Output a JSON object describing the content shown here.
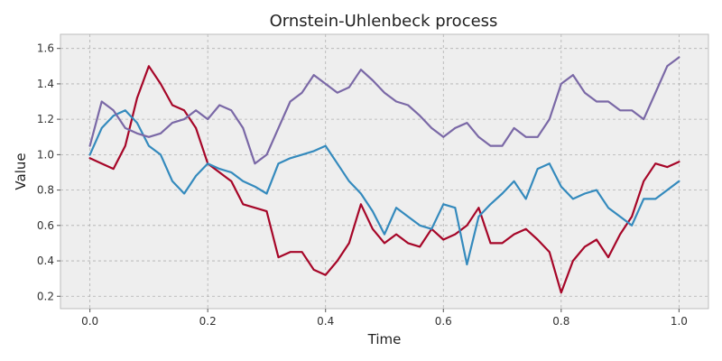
{
  "chart_data": {
    "type": "line",
    "title": "Ornstein-Uhlenbeck process",
    "xlabel": "Time",
    "ylabel": "Value",
    "xlim": [
      -0.05,
      1.05
    ],
    "ylim": [
      0.13,
      1.68
    ],
    "xticks": [
      "0.0",
      "0.2",
      "0.4",
      "0.6",
      "0.8",
      "1.0"
    ],
    "yticks": [
      "0.2",
      "0.4",
      "0.6",
      "0.8",
      "1.0",
      "1.2",
      "1.4",
      "1.6"
    ],
    "grid": true,
    "background": "#eeeeee",
    "series": [
      {
        "color": "#a60628",
        "x": [
          0.0,
          0.02,
          0.04,
          0.06,
          0.08,
          0.1,
          0.12,
          0.14,
          0.16,
          0.18,
          0.2,
          0.22,
          0.24,
          0.26,
          0.28,
          0.3,
          0.32,
          0.34,
          0.36,
          0.38,
          0.4,
          0.42,
          0.44,
          0.46,
          0.48,
          0.5,
          0.52,
          0.54,
          0.56,
          0.58,
          0.6,
          0.62,
          0.64,
          0.66,
          0.68,
          0.7,
          0.72,
          0.74,
          0.76,
          0.78,
          0.8,
          0.82,
          0.84,
          0.86,
          0.88,
          0.9,
          0.92,
          0.94,
          0.96,
          0.98,
          1.0
        ],
        "y": [
          0.98,
          0.95,
          0.92,
          1.05,
          1.32,
          1.5,
          1.4,
          1.28,
          1.25,
          1.15,
          0.95,
          0.9,
          0.85,
          0.72,
          0.7,
          0.68,
          0.42,
          0.45,
          0.45,
          0.35,
          0.32,
          0.4,
          0.5,
          0.72,
          0.58,
          0.5,
          0.55,
          0.5,
          0.48,
          0.58,
          0.52,
          0.55,
          0.6,
          0.7,
          0.5,
          0.5,
          0.55,
          0.58,
          0.52,
          0.45,
          0.22,
          0.4,
          0.48,
          0.52,
          0.42,
          0.55,
          0.65,
          0.85,
          0.95,
          0.93,
          0.96
        ]
      },
      {
        "color": "#348abd",
        "x": [
          0.0,
          0.02,
          0.04,
          0.06,
          0.08,
          0.1,
          0.12,
          0.14,
          0.16,
          0.18,
          0.2,
          0.22,
          0.24,
          0.26,
          0.28,
          0.3,
          0.32,
          0.34,
          0.36,
          0.38,
          0.4,
          0.42,
          0.44,
          0.46,
          0.48,
          0.5,
          0.52,
          0.54,
          0.56,
          0.58,
          0.6,
          0.62,
          0.64,
          0.66,
          0.68,
          0.7,
          0.72,
          0.74,
          0.76,
          0.78,
          0.8,
          0.82,
          0.84,
          0.86,
          0.88,
          0.9,
          0.92,
          0.94,
          0.96,
          0.98,
          1.0
        ],
        "y": [
          1.0,
          1.15,
          1.22,
          1.25,
          1.18,
          1.05,
          1.0,
          0.85,
          0.78,
          0.88,
          0.95,
          0.92,
          0.9,
          0.85,
          0.82,
          0.78,
          0.95,
          0.98,
          1.0,
          1.02,
          1.05,
          0.95,
          0.85,
          0.78,
          0.68,
          0.55,
          0.7,
          0.65,
          0.6,
          0.58,
          0.72,
          0.7,
          0.38,
          0.65,
          0.72,
          0.78,
          0.85,
          0.75,
          0.92,
          0.95,
          0.82,
          0.75,
          0.78,
          0.8,
          0.7,
          0.65,
          0.6,
          0.75,
          0.75,
          0.8,
          0.85
        ]
      },
      {
        "color": "#7a68a6",
        "x": [
          0.0,
          0.02,
          0.04,
          0.06,
          0.08,
          0.1,
          0.12,
          0.14,
          0.16,
          0.18,
          0.2,
          0.22,
          0.24,
          0.26,
          0.28,
          0.3,
          0.32,
          0.34,
          0.36,
          0.38,
          0.4,
          0.42,
          0.44,
          0.46,
          0.48,
          0.5,
          0.52,
          0.54,
          0.56,
          0.58,
          0.6,
          0.62,
          0.64,
          0.66,
          0.68,
          0.7,
          0.72,
          0.74,
          0.76,
          0.78,
          0.8,
          0.82,
          0.84,
          0.86,
          0.88,
          0.9,
          0.92,
          0.94,
          0.96,
          0.98,
          1.0
        ],
        "y": [
          1.05,
          1.3,
          1.25,
          1.15,
          1.12,
          1.1,
          1.12,
          1.18,
          1.2,
          1.25,
          1.2,
          1.28,
          1.25,
          1.15,
          0.95,
          1.0,
          1.15,
          1.3,
          1.35,
          1.45,
          1.4,
          1.35,
          1.38,
          1.48,
          1.42,
          1.35,
          1.3,
          1.28,
          1.22,
          1.15,
          1.1,
          1.15,
          1.18,
          1.1,
          1.05,
          1.05,
          1.15,
          1.1,
          1.1,
          1.2,
          1.4,
          1.45,
          1.35,
          1.3,
          1.3,
          1.25,
          1.25,
          1.2,
          1.35,
          1.5,
          1.55
        ]
      }
    ]
  }
}
